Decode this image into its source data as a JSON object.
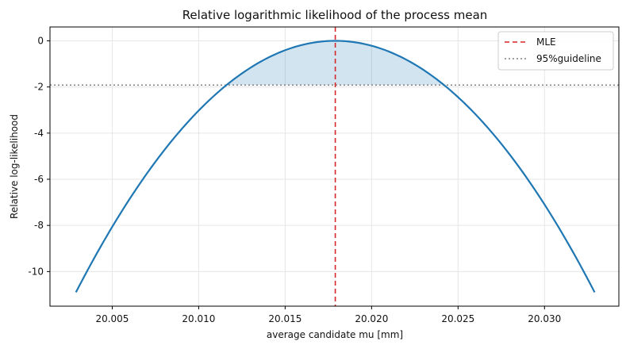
{
  "chart_data": {
    "type": "line",
    "title": "Relative logarithmic likelihood of the process mean",
    "xlabel": "average candidate mu [mm]",
    "ylabel": "Relative log-likelihood",
    "xlim": [
      20.0014,
      20.0343
    ],
    "ylim": [
      -11.5,
      0.6
    ],
    "xticks": [
      20.005,
      20.01,
      20.015,
      20.02,
      20.025,
      20.03
    ],
    "xtick_labels": [
      "20.005",
      "20.010",
      "20.015",
      "20.020",
      "20.025",
      "20.030"
    ],
    "yticks": [
      0,
      -2,
      -4,
      -6,
      -8,
      -10
    ],
    "ytick_labels": [
      "0",
      "-2",
      "-4",
      "-6",
      "-8",
      "-10"
    ],
    "grid": true,
    "legend_position": "top-right",
    "series": [
      {
        "name": "",
        "color": "#1f77b4",
        "style": "solid",
        "curve": "parabola",
        "vertex": [
          20.0179,
          0
        ],
        "x_range": [
          20.0029,
          20.0329
        ],
        "y_at_ends": -10.9
      }
    ],
    "reference_lines": [
      {
        "name": "MLE",
        "orientation": "vertical",
        "value": 20.0179,
        "color": "#d62728",
        "style": "dashed"
      },
      {
        "name": "95%guideline",
        "orientation": "horizontal",
        "value": -1.92,
        "color": "#808080",
        "style": "dotted"
      }
    ],
    "shaded_region": {
      "between": "curve-and-guideline",
      "color": "#1f77b4",
      "opacity": 0.2
    }
  }
}
